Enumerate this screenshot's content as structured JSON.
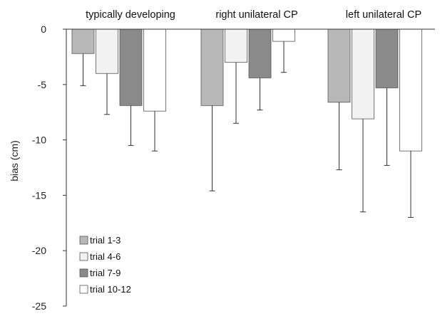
{
  "chart_data": {
    "type": "bar",
    "ylabel": "bias (cm)",
    "ylim": [
      -25,
      0
    ],
    "yticks": [
      0,
      -5,
      -10,
      -15,
      -20,
      -25
    ],
    "grid": false,
    "legend_position": "bottom-left",
    "categories": [
      "typically developing",
      "right unilateral CP",
      "left unilateral CP"
    ],
    "series": [
      {
        "name": "trial 1-3",
        "color": "#b8b8b8",
        "values": [
          -2.2,
          -6.9,
          -6.6
        ],
        "error": [
          2.9,
          7.7,
          6.1
        ]
      },
      {
        "name": "trial 4-6",
        "color": "#f2f2f2",
        "values": [
          -4.0,
          -3.0,
          -8.1
        ],
        "error": [
          3.7,
          5.5,
          8.4
        ]
      },
      {
        "name": "trial 7-9",
        "color": "#8a8a8a",
        "values": [
          -6.9,
          -4.4,
          -5.3
        ],
        "error": [
          3.6,
          2.9,
          7.0
        ]
      },
      {
        "name": "trial 10-12",
        "color": "#ffffff",
        "values": [
          -7.4,
          -1.1,
          -11.0
        ],
        "error": [
          3.6,
          2.8,
          6.0
        ]
      }
    ]
  }
}
